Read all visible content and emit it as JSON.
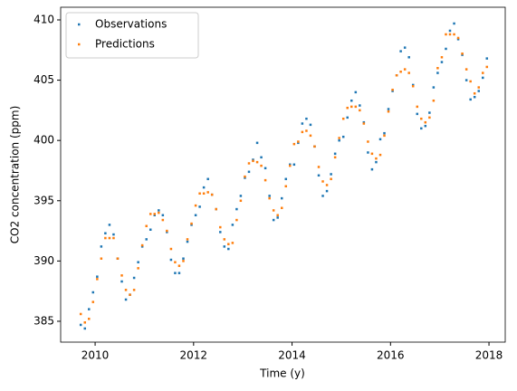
{
  "chart_data": {
    "type": "scatter",
    "xlabel": "Time (y)",
    "ylabel": "CO2 concentration (ppm)",
    "x": [
      2009.708,
      2009.792,
      2009.875,
      2009.958,
      2010.042,
      2010.125,
      2010.208,
      2010.292,
      2010.375,
      2010.458,
      2010.542,
      2010.625,
      2010.708,
      2010.792,
      2010.875,
      2010.958,
      2011.042,
      2011.125,
      2011.208,
      2011.292,
      2011.375,
      2011.458,
      2011.542,
      2011.625,
      2011.708,
      2011.792,
      2011.875,
      2011.958,
      2012.042,
      2012.125,
      2012.208,
      2012.292,
      2012.375,
      2012.458,
      2012.542,
      2012.625,
      2012.708,
      2012.792,
      2012.875,
      2012.958,
      2013.042,
      2013.125,
      2013.208,
      2013.292,
      2013.375,
      2013.458,
      2013.542,
      2013.625,
      2013.708,
      2013.792,
      2013.875,
      2013.958,
      2014.042,
      2014.125,
      2014.208,
      2014.292,
      2014.375,
      2014.458,
      2014.542,
      2014.625,
      2014.708,
      2014.792,
      2014.875,
      2014.958,
      2015.042,
      2015.125,
      2015.208,
      2015.292,
      2015.375,
      2015.458,
      2015.542,
      2015.625,
      2015.708,
      2015.792,
      2015.875,
      2015.958,
      2016.042,
      2016.125,
      2016.208,
      2016.292,
      2016.375,
      2016.458,
      2016.542,
      2016.625,
      2016.708,
      2016.792,
      2016.875,
      2016.958,
      2017.042,
      2017.125,
      2017.208,
      2017.292,
      2017.375,
      2017.458,
      2017.542,
      2017.625,
      2017.708,
      2017.792,
      2017.875,
      2017.958
    ],
    "series": [
      {
        "name": "Observations",
        "color": "#1f77b4",
        "values": [
          384.7,
          384.4,
          386.0,
          387.4,
          388.7,
          391.2,
          392.3,
          393.0,
          392.2,
          390.2,
          388.3,
          386.8,
          387.2,
          388.6,
          389.9,
          391.2,
          391.8,
          392.6,
          393.8,
          394.2,
          393.8,
          392.4,
          390.1,
          389.0,
          389.0,
          390.2,
          391.6,
          393.0,
          393.8,
          394.5,
          396.1,
          396.8,
          395.5,
          394.3,
          392.4,
          391.2,
          391.0,
          393.0,
          394.3,
          395.4,
          396.9,
          397.4,
          398.4,
          399.8,
          398.6,
          397.7,
          395.4,
          393.4,
          393.6,
          395.2,
          396.8,
          398.0,
          398.0,
          399.8,
          401.4,
          401.8,
          401.3,
          399.5,
          397.1,
          395.4,
          395.8,
          397.2,
          398.9,
          400.0,
          400.3,
          401.9,
          403.3,
          404.0,
          402.9,
          401.5,
          399.0,
          397.6,
          398.2,
          400.1,
          400.6,
          402.6,
          404.1,
          405.4,
          407.4,
          407.7,
          406.9,
          404.6,
          402.2,
          401.0,
          401.2,
          402.3,
          404.4,
          405.6,
          406.5,
          407.6,
          409.1,
          409.7,
          408.4,
          407.1,
          405.0,
          403.4,
          403.6,
          404.1,
          405.2,
          406.8
        ]
      },
      {
        "name": "Predictions",
        "color": "#ff7f0e",
        "values": [
          385.6,
          384.9,
          385.2,
          386.6,
          388.5,
          390.2,
          391.9,
          391.9,
          391.9,
          390.2,
          388.8,
          387.6,
          387.2,
          387.6,
          389.4,
          391.3,
          392.9,
          393.9,
          393.9,
          394.0,
          393.4,
          392.5,
          391.0,
          389.9,
          389.6,
          390.0,
          391.8,
          393.1,
          394.6,
          395.6,
          395.6,
          395.7,
          395.5,
          394.3,
          392.8,
          391.8,
          391.4,
          391.5,
          393.4,
          395.0,
          397.0,
          398.1,
          398.3,
          398.2,
          397.9,
          396.7,
          395.2,
          394.2,
          393.8,
          394.4,
          396.2,
          397.9,
          399.7,
          399.9,
          400.7,
          400.8,
          400.4,
          399.5,
          397.8,
          396.6,
          396.3,
          396.8,
          398.6,
          400.2,
          401.8,
          402.7,
          402.8,
          402.8,
          402.5,
          401.4,
          399.9,
          398.9,
          398.5,
          398.8,
          400.4,
          402.4,
          404.2,
          405.4,
          405.7,
          405.9,
          405.6,
          404.5,
          402.8,
          401.8,
          401.5,
          401.9,
          403.3,
          406.0,
          406.9,
          408.8,
          408.8,
          408.8,
          408.5,
          407.2,
          405.9,
          404.9,
          403.9,
          404.4,
          405.6,
          406.1
        ]
      }
    ],
    "xlim": [
      2009.3,
      2018.33
    ],
    "xticks": [
      2010,
      2012,
      2014,
      2016,
      2018
    ],
    "ylim": [
      383.27,
      411.05
    ],
    "yticks": [
      385,
      390,
      395,
      400,
      405,
      410
    ],
    "legend": "upper left",
    "grid": false
  }
}
